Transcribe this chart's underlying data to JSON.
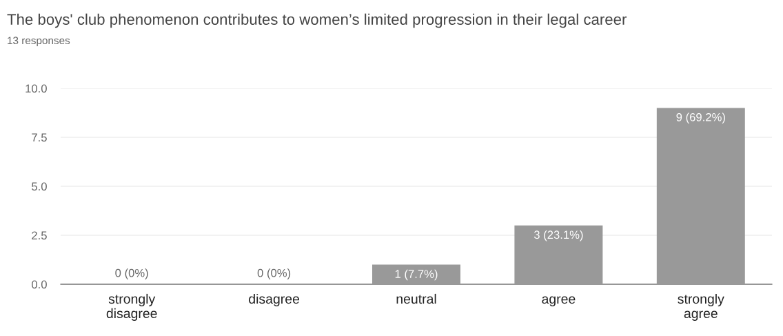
{
  "chart_data": {
    "type": "bar",
    "title": "The boys' club phenomenon contributes to women’s limited progression in their legal career",
    "subtitle": "13 responses",
    "categories": [
      "strongly\ndisagree",
      "disagree",
      "neutral",
      "agree",
      "strongly\nagree"
    ],
    "values": [
      0,
      0,
      1,
      3,
      9
    ],
    "value_labels": [
      "0 (0%)",
      "0 (0%)",
      "1 (7.7%)",
      "3 (23.1%)",
      "9 (69.2%)"
    ],
    "color": "#999999",
    "ylim": [
      0,
      10
    ],
    "yticks": [
      {
        "value": 0,
        "label": "0.0"
      },
      {
        "value": 2.5,
        "label": "2.5"
      },
      {
        "value": 5,
        "label": "5.0"
      },
      {
        "value": 7.5,
        "label": "7.5"
      },
      {
        "value": 10,
        "label": "10.0"
      }
    ],
    "grid": "y",
    "legend": false
  }
}
